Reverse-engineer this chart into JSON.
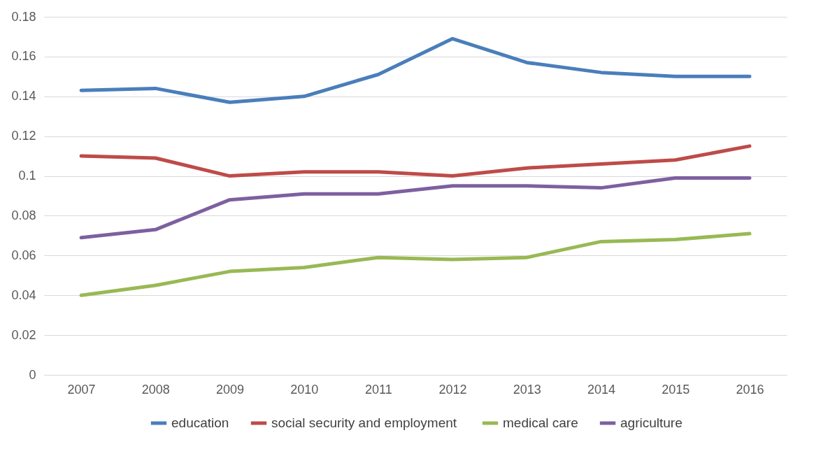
{
  "chart_data": {
    "type": "line",
    "categories": [
      "2007",
      "2008",
      "2009",
      "2010",
      "2011",
      "2012",
      "2013",
      "2014",
      "2015",
      "2016"
    ],
    "series": [
      {
        "name": "education",
        "color": "#4a7ebb",
        "values": [
          0.143,
          0.144,
          0.137,
          0.14,
          0.151,
          0.169,
          0.157,
          0.152,
          0.15,
          0.15
        ]
      },
      {
        "name": "social  security and employment",
        "color": "#be4b48",
        "values": [
          0.11,
          0.109,
          0.1,
          0.102,
          0.102,
          0.1,
          0.104,
          0.106,
          0.108,
          0.115
        ]
      },
      {
        "name": "medical care",
        "color": "#98b954",
        "values": [
          0.04,
          0.045,
          0.052,
          0.054,
          0.059,
          0.058,
          0.059,
          0.067,
          0.068,
          0.071
        ]
      },
      {
        "name": "agriculture",
        "color": "#7d60a0",
        "values": [
          0.069,
          0.073,
          0.088,
          0.091,
          0.091,
          0.095,
          0.095,
          0.094,
          0.099,
          0.099
        ]
      }
    ],
    "ylim": [
      0,
      0.18
    ],
    "yticks": [
      0,
      0.02,
      0.04,
      0.06,
      0.08,
      0.1,
      0.12,
      0.14,
      0.16,
      0.18
    ],
    "grid": "y",
    "legend": "bottom",
    "marker": "none",
    "line_style": "solid"
  }
}
